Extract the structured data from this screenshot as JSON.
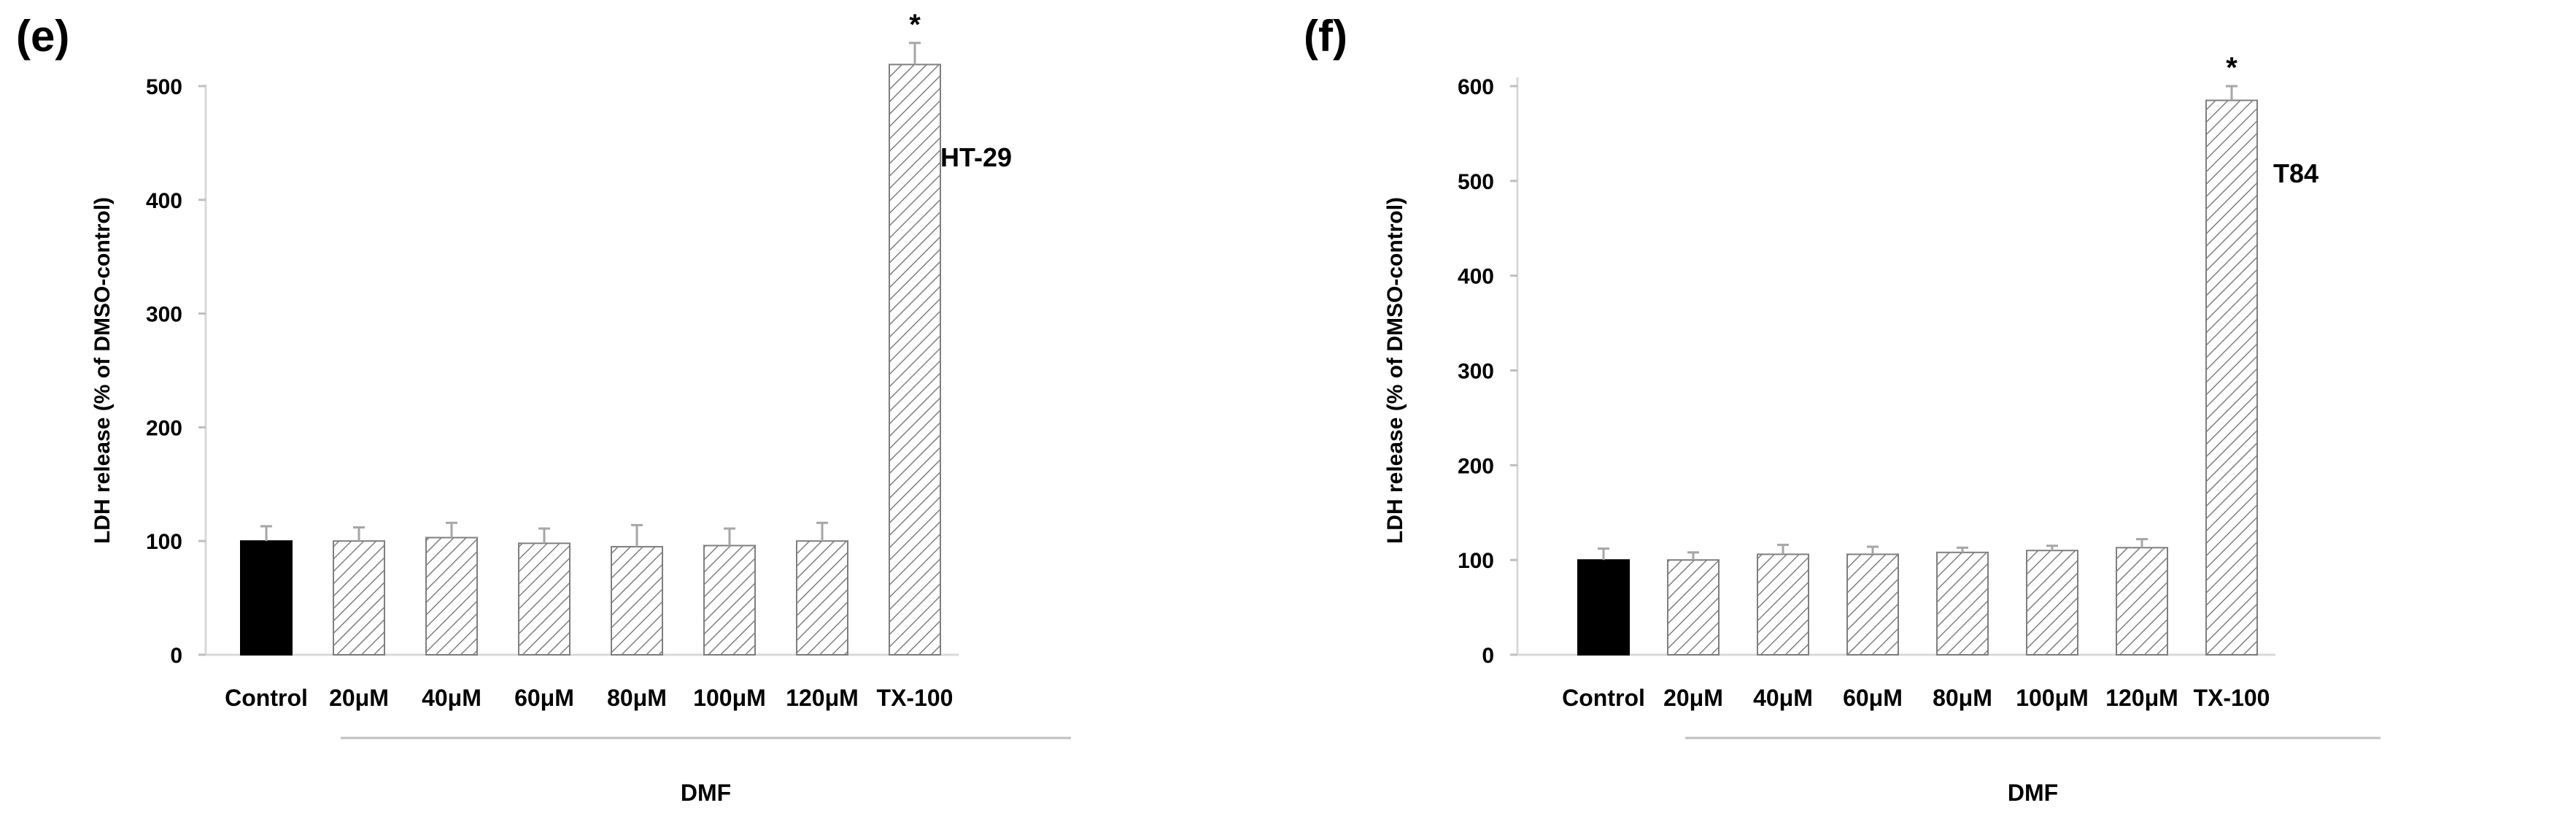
{
  "chart_data": [
    {
      "type": "bar",
      "panel_label": "(e)",
      "annotation": "HT-29",
      "ylabel": "LDH release (% of DMSO-control)",
      "xlabel": "",
      "group_label": "DMF",
      "ylim": [
        0,
        550
      ],
      "yticks": [
        0,
        100,
        200,
        300,
        400,
        500
      ],
      "categories": [
        "Control",
        "20μM",
        "40μM",
        "60μM",
        "80μM",
        "100μM",
        "120μM",
        "TX-100"
      ],
      "values": [
        100,
        100,
        103,
        98,
        95,
        96,
        100,
        519
      ],
      "errors": [
        13,
        12,
        13,
        13,
        19,
        15,
        16,
        19
      ],
      "significance": [
        "",
        "",
        "",
        "",
        "",
        "",
        "",
        "*"
      ],
      "grid": false
    },
    {
      "type": "bar",
      "panel_label": "(f)",
      "annotation": "T84",
      "ylabel": "LDH release (% of DMSO-control)",
      "xlabel": "",
      "group_label": "DMF",
      "ylim": [
        0,
        600
      ],
      "yticks": [
        0,
        100,
        200,
        300,
        400,
        500,
        600
      ],
      "categories": [
        "Control",
        "20μM",
        "40μM",
        "60μM",
        "80μM",
        "100μM",
        "120μM",
        "TX-100"
      ],
      "values": [
        100,
        100,
        106,
        106,
        108,
        110,
        113,
        585
      ],
      "errors": [
        12,
        8,
        10,
        8,
        5,
        5,
        9,
        15
      ],
      "significance": [
        "",
        "",
        "",
        "",
        "",
        "",
        "",
        "*"
      ],
      "grid": false
    }
  ],
  "colors": {
    "control": "#000000",
    "hatch": "#7f7f7f",
    "axis": "#d9d9d9",
    "errorbar": "#a6a6a6"
  }
}
